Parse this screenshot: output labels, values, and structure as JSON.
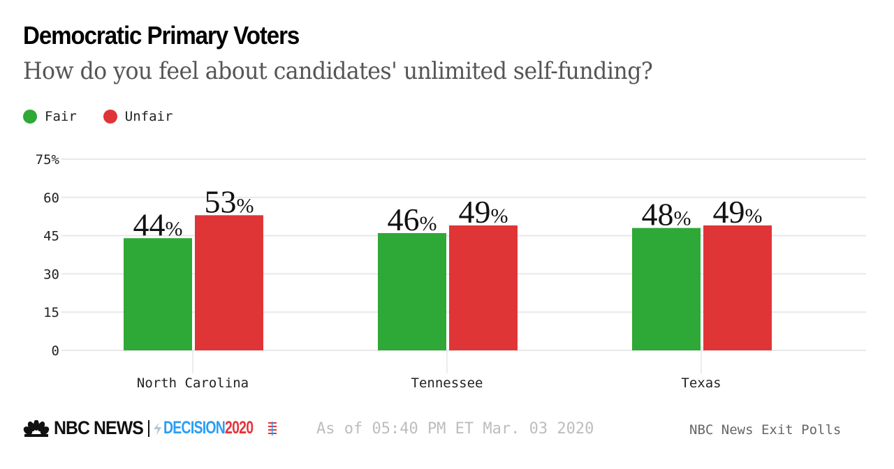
{
  "header": {
    "title": "Democratic Primary Voters",
    "subtitle": "How do you feel about candidates' unlimited self-funding?"
  },
  "legend": [
    {
      "label": "Fair",
      "color": "#2ea836"
    },
    {
      "label": "Unfair",
      "color": "#e03537"
    }
  ],
  "footer": {
    "brand": "NBC NEWS",
    "brand_icon": "peacock-icon",
    "decision_label": "DECISION",
    "decision_year": "2020",
    "timestamp": "As of 05:40 PM ET Mar. 03 2020",
    "source": "NBC News Exit Polls"
  },
  "chart_data": {
    "type": "bar",
    "title": "Democratic Primary Voters",
    "subtitle": "How do you feel about candidates' unlimited self-funding?",
    "categories": [
      "North Carolina",
      "Tennessee",
      "Texas"
    ],
    "series": [
      {
        "name": "Fair",
        "color": "#2ea836",
        "values": [
          44,
          46,
          48
        ]
      },
      {
        "name": "Unfair",
        "color": "#e03537",
        "values": [
          53,
          49,
          49
        ]
      }
    ],
    "value_suffix": "%",
    "xlabel": "",
    "ylabel": "",
    "ylim": [
      0,
      75
    ],
    "yticks": [
      0,
      15,
      30,
      45,
      60,
      75
    ],
    "ytick_labels": [
      "0",
      "15",
      "30",
      "45",
      "60",
      "75%"
    ],
    "grid": true,
    "legend_position": "top-left"
  }
}
